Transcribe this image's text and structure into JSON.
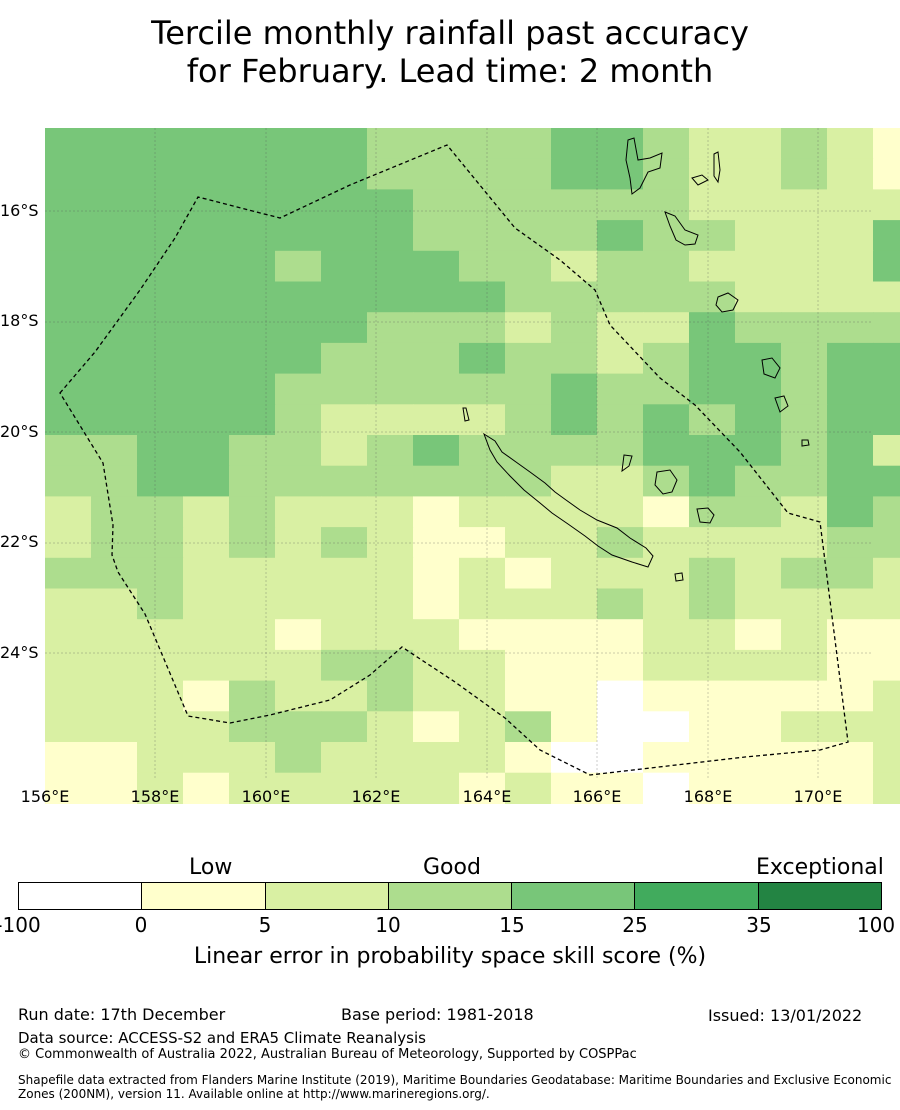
{
  "title": {
    "line1": "Tercile monthly rainfall past accuracy",
    "line2": "for February. Lead time: 2 month"
  },
  "map": {
    "lon_labels": [
      "156°E",
      "158°E",
      "160°E",
      "162°E",
      "164°E",
      "166°E",
      "168°E",
      "170°E"
    ],
    "lat_labels": [
      "16°S",
      "18°S",
      "20°S",
      "22°S",
      "24°S"
    ],
    "grid": "on"
  },
  "colorbar": {
    "categories": {
      "low": "Low",
      "good": "Good",
      "exceptional": "Exceptional"
    },
    "ticks": [
      "-100",
      "0",
      "5",
      "10",
      "15",
      "25",
      "35",
      "100"
    ],
    "colors": [
      "#ffffff",
      "#ffffcc",
      "#d9f0a3",
      "#addd8e",
      "#78c679",
      "#41ab5d",
      "#238443"
    ],
    "label": "Linear error in probability space skill score (%)"
  },
  "footer": {
    "run_date": "Run date: 17th December",
    "base_period": "Base period: 1981-2018",
    "issued": "Issued: 13/01/2022",
    "data_source": "Data source: ACCESS-S2 and ERA5 Climate Reanalysis",
    "copyright": "© Commonwealth of Australia 2022, Australian Bureau of Meteorology, Supported by COSPPac",
    "shapefile_line1": "Shapefile data extracted from Flanders Marine Institute (2019), Maritime Boundaries Geodatabase: Maritime Boundaries and Exclusive Economic",
    "shapefile_line2": "Zones (200NM), version 11. Available online at http://www.marineregions.org/."
  },
  "chart_data": {
    "type": "heatmap",
    "xlabel": "",
    "ylabel": "",
    "legend": {
      "categories": [
        "Low",
        "Good",
        "Exceptional"
      ],
      "bins": [
        "-100–0",
        "0–5",
        "5–10",
        "10–15",
        "15–25",
        "25–35",
        "35–100"
      ]
    },
    "note": "Cell values are colour bins: 0=-100–0, 1=0–5, 2=5–10, 3=10–15, 4=15–25, 5=25–35, 6=35–100. Rows from north to south.",
    "cells": [
      [
        4,
        4,
        4,
        4,
        4,
        4,
        4,
        3,
        3,
        3,
        3,
        4,
        4,
        3,
        2,
        2,
        3,
        2,
        1
      ],
      [
        4,
        4,
        4,
        4,
        4,
        4,
        4,
        3,
        3,
        3,
        3,
        4,
        4,
        3,
        2,
        2,
        3,
        2,
        1
      ],
      [
        4,
        4,
        4,
        4,
        4,
        4,
        4,
        4,
        3,
        3,
        3,
        3,
        3,
        3,
        2,
        2,
        2,
        2,
        2
      ],
      [
        4,
        4,
        4,
        4,
        4,
        4,
        4,
        4,
        3,
        3,
        3,
        3,
        4,
        3,
        3,
        2,
        2,
        2,
        4
      ],
      [
        4,
        4,
        4,
        4,
        4,
        3,
        4,
        4,
        4,
        3,
        3,
        2,
        3,
        3,
        2,
        2,
        2,
        2,
        4
      ],
      [
        4,
        4,
        4,
        4,
        4,
        4,
        4,
        4,
        4,
        4,
        3,
        3,
        3,
        3,
        3,
        2,
        2,
        2,
        2
      ],
      [
        4,
        4,
        4,
        4,
        4,
        4,
        4,
        3,
        3,
        3,
        2,
        3,
        2,
        2,
        4,
        3,
        3,
        3,
        3
      ],
      [
        4,
        4,
        4,
        4,
        4,
        4,
        3,
        3,
        3,
        4,
        3,
        3,
        2,
        3,
        4,
        4,
        3,
        4,
        4
      ],
      [
        4,
        4,
        4,
        4,
        4,
        3,
        3,
        3,
        3,
        3,
        3,
        4,
        3,
        3,
        4,
        4,
        3,
        4,
        4
      ],
      [
        4,
        4,
        4,
        4,
        4,
        3,
        2,
        2,
        2,
        2,
        3,
        4,
        3,
        4,
        3,
        4,
        3,
        4,
        4
      ],
      [
        3,
        3,
        4,
        4,
        3,
        3,
        2,
        3,
        4,
        3,
        3,
        3,
        3,
        4,
        4,
        4,
        3,
        4,
        2
      ],
      [
        3,
        3,
        4,
        4,
        3,
        3,
        3,
        3,
        3,
        3,
        3,
        2,
        2,
        3,
        4,
        3,
        3,
        4,
        4
      ],
      [
        2,
        3,
        3,
        2,
        3,
        2,
        2,
        2,
        1,
        2,
        2,
        2,
        2,
        1,
        3,
        3,
        2,
        4,
        3
      ],
      [
        2,
        3,
        3,
        2,
        3,
        2,
        3,
        2,
        1,
        1,
        2,
        2,
        3,
        2,
        2,
        2,
        2,
        3,
        3
      ],
      [
        3,
        3,
        3,
        2,
        2,
        2,
        2,
        2,
        1,
        2,
        1,
        2,
        2,
        2,
        3,
        2,
        3,
        3,
        2
      ],
      [
        2,
        2,
        3,
        2,
        2,
        2,
        2,
        2,
        1,
        2,
        2,
        2,
        3,
        2,
        3,
        2,
        2,
        2,
        2
      ],
      [
        2,
        2,
        2,
        2,
        2,
        1,
        2,
        2,
        2,
        1,
        1,
        1,
        1,
        2,
        2,
        1,
        2,
        1,
        1
      ],
      [
        2,
        2,
        2,
        2,
        2,
        2,
        3,
        3,
        2,
        2,
        1,
        1,
        1,
        2,
        2,
        2,
        2,
        1,
        1
      ],
      [
        2,
        2,
        2,
        1,
        3,
        2,
        2,
        3,
        2,
        2,
        1,
        1,
        0,
        1,
        1,
        1,
        1,
        1,
        2
      ],
      [
        2,
        2,
        2,
        2,
        3,
        3,
        3,
        2,
        1,
        2,
        3,
        1,
        0,
        0,
        1,
        1,
        2,
        2,
        2
      ],
      [
        1,
        1,
        2,
        2,
        2,
        3,
        2,
        2,
        2,
        2,
        1,
        0,
        0,
        1,
        1,
        1,
        1,
        1,
        2
      ],
      [
        1,
        1,
        2,
        1,
        2,
        2,
        2,
        2,
        2,
        1,
        2,
        1,
        1,
        0,
        1,
        1,
        1,
        1,
        2
      ]
    ]
  }
}
